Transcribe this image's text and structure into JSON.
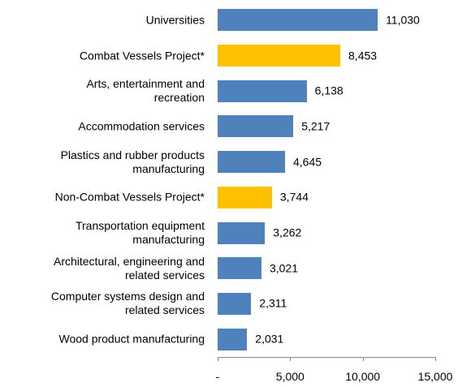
{
  "chart_data": {
    "type": "bar",
    "orientation": "horizontal",
    "categories": [
      "Universities",
      "Combat Vessels Project*",
      "Arts, entertainment and\nrecreation",
      "Accommodation services",
      "Plastics and rubber products\nmanufacturing",
      "Non-Combat Vessels Project*",
      "Transportation equipment\nmanufacturing",
      "Architectural, engineering and\nrelated services",
      "Computer systems design and\nrelated services",
      "Wood product manufacturing"
    ],
    "values": [
      11030,
      8453,
      6138,
      5217,
      4645,
      3744,
      3262,
      3021,
      2311,
      2031
    ],
    "value_labels": [
      "11,030",
      "8,453",
      "6,138",
      "5,217",
      "4,645",
      "3,744",
      "3,262",
      "3,021",
      "2,311",
      "2,031"
    ],
    "colors": [
      "#4f81bd",
      "#ffc000",
      "#4f81bd",
      "#4f81bd",
      "#4f81bd",
      "#ffc000",
      "#4f81bd",
      "#4f81bd",
      "#4f81bd",
      "#4f81bd"
    ],
    "xlim": [
      0,
      15000
    ],
    "xticks": [
      {
        "value": 0,
        "label": "-"
      },
      {
        "value": 5000,
        "label": "5,000"
      },
      {
        "value": 10000,
        "label": "10,000"
      },
      {
        "value": 15000,
        "label": "15,000"
      }
    ],
    "grid": false
  }
}
